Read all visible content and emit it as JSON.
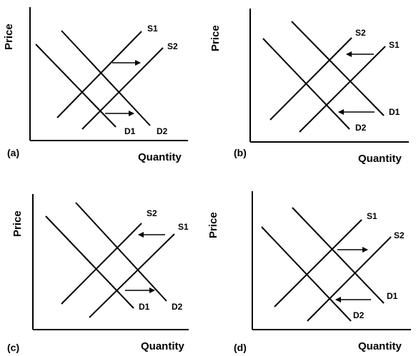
{
  "common": {
    "y_axis_label": "Price",
    "x_axis_label": "Quantity"
  },
  "panels": [
    {
      "letter": "(a)",
      "curves": {
        "s1": "S1",
        "s2": "S2",
        "d1": "D1",
        "d2": "D2"
      }
    },
    {
      "letter": "(b)",
      "curves": {
        "s1": "S1",
        "s2": "S2",
        "d1": "D1",
        "d2": "D2"
      }
    },
    {
      "letter": "(c)",
      "curves": {
        "s1": "S1",
        "s2": "S2",
        "d1": "D1",
        "d2": "D2"
      }
    },
    {
      "letter": "(d)",
      "curves": {
        "s1": "S1",
        "s2": "S2",
        "d1": "D1",
        "d2": "D2"
      }
    }
  ]
}
